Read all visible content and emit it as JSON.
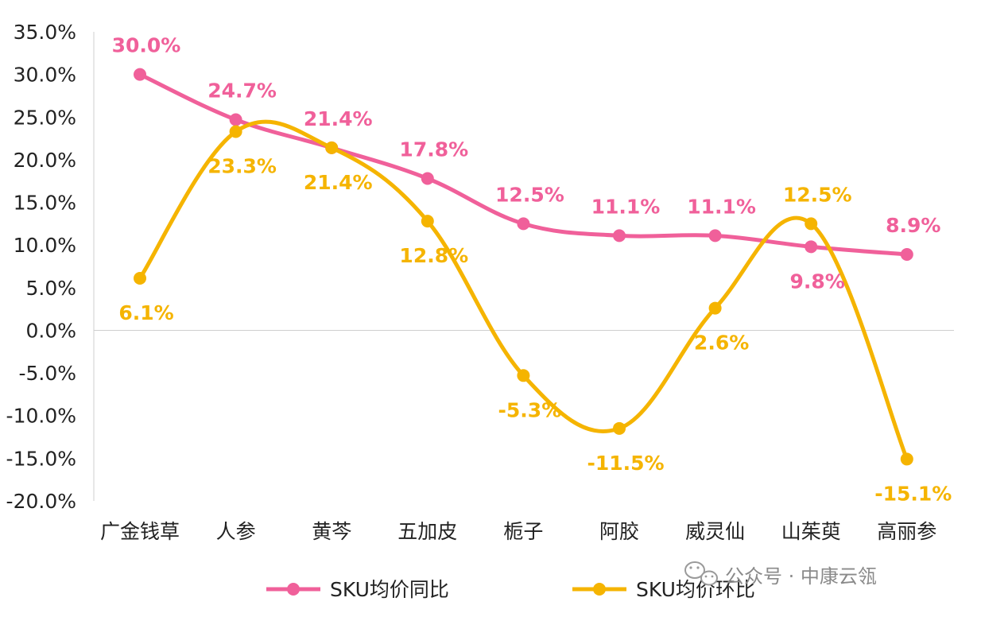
{
  "chart_data": {
    "type": "line",
    "categories": [
      "广金钱草",
      "人参",
      "黄芩",
      "五加皮",
      "栀子",
      "阿胶",
      "威灵仙",
      "山茱萸",
      "高丽参"
    ],
    "ylim": [
      -20,
      35
    ],
    "y_ticks": [
      "35.0%",
      "30.0%",
      "25.0%",
      "20.0%",
      "15.0%",
      "10.0%",
      "5.0%",
      "0.0%",
      "-5.0%",
      "-10.0%",
      "-15.0%",
      "-20.0%"
    ],
    "grid": false,
    "legend_position": "bottom",
    "series": [
      {
        "name": "SKU均价同比",
        "color": "#f0609a",
        "values": [
          30.0,
          24.7,
          21.4,
          17.8,
          12.5,
          11.1,
          11.1,
          9.8,
          8.9
        ],
        "labels": [
          "30.0%",
          "24.7%",
          "21.4%",
          "17.8%",
          "12.5%",
          "11.1%",
          "11.1%",
          "9.8%",
          "8.9%"
        ]
      },
      {
        "name": "SKU均价环比",
        "color": "#f5b400",
        "values": [
          6.1,
          23.3,
          21.4,
          12.8,
          -5.3,
          -11.5,
          2.6,
          12.5,
          -15.1
        ],
        "labels": [
          "6.1%",
          "23.3%",
          "21.4%",
          "12.8%",
          "-5.3%",
          "-11.5%",
          "2.6%",
          "12.5%",
          "-15.1%"
        ]
      }
    ]
  },
  "watermark": {
    "icon": "wechat-icon",
    "text": "公众号 · 中康云瓴"
  }
}
